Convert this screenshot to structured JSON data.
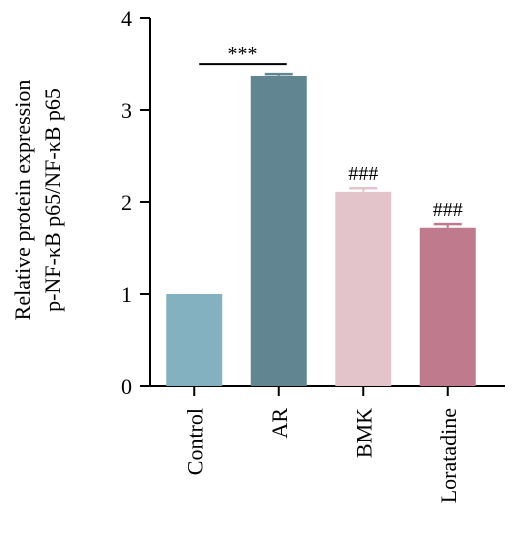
{
  "chart_data": {
    "type": "bar",
    "categories": [
      "Control",
      "AR",
      "BMK",
      "Loratadine"
    ],
    "values": [
      1.0,
      3.37,
      2.11,
      1.72
    ],
    "errors": [
      0.0,
      0.02,
      0.04,
      0.04
    ],
    "colors": [
      "#84b1c0",
      "#618591",
      "#e3c4cb",
      "#c07a8d"
    ],
    "ylabel_lines": [
      "Relative protein expression",
      "p-NF-κB p65/NF-κB p65"
    ],
    "ylim": [
      0,
      4
    ],
    "yticks": [
      "0",
      "1",
      "2",
      "3",
      "4"
    ],
    "annotations": [
      {
        "category": "AR",
        "text": "***",
        "bracket": true
      },
      {
        "category": "BMK",
        "text": "###"
      },
      {
        "category": "Loratadine",
        "text": "###"
      }
    ]
  }
}
